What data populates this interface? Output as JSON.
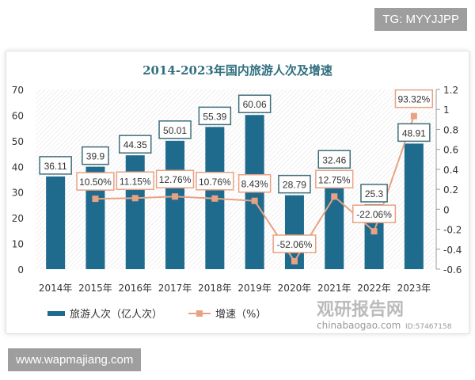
{
  "overlays": {
    "top_right": "TG: MYYJJPP",
    "bottom_left": "www.wapmajiang.com"
  },
  "watermark": {
    "name": "观研报告网",
    "url": "chinabaogao.com",
    "id": "ID:57467158"
  },
  "chart_data": {
    "type": "bar+line",
    "title": "2014-2023年国内旅游人次及增速",
    "categories": [
      "2014年",
      "2015年",
      "2016年",
      "2017年",
      "2018年",
      "2019年",
      "2020年",
      "2021年",
      "2022年",
      "2023年"
    ],
    "series": [
      {
        "name": "旅游人次（亿人次）",
        "type": "bar",
        "axis": "left",
        "color": "#1f6b8e",
        "values": [
          36.11,
          39.9,
          44.35,
          50.01,
          55.39,
          60.06,
          28.79,
          32.46,
          25.3,
          48.91
        ],
        "labels": [
          "36.11",
          "39.9",
          "44.35",
          "50.01",
          "55.39",
          "60.06",
          "28.79",
          "32.46",
          "25.3",
          "48.91"
        ]
      },
      {
        "name": "增速（%）",
        "type": "line",
        "axis": "right",
        "color": "#e8a283",
        "values": [
          null,
          0.105,
          0.1115,
          0.1276,
          0.1076,
          0.0843,
          -0.5206,
          0.1275,
          -0.2206,
          0.9332
        ],
        "labels": [
          null,
          "10.50%",
          "11.15%",
          "12.76%",
          "10.76%",
          "8.43%",
          "-52.06%",
          "12.75%",
          "-22.06%",
          "93.32%"
        ]
      }
    ],
    "y_left": {
      "range": [
        0,
        70
      ],
      "ticks": [
        "0",
        "10",
        "20",
        "30",
        "40",
        "50",
        "60",
        "70"
      ]
    },
    "y_right": {
      "range": [
        -0.6,
        1.2
      ],
      "ticks": [
        "-0.6",
        "-0.4",
        "-0.2",
        "0",
        "0.2",
        "0.4",
        "0.6",
        "0.8",
        "1",
        "1.2"
      ]
    },
    "grid": false,
    "legend": "bottom"
  }
}
